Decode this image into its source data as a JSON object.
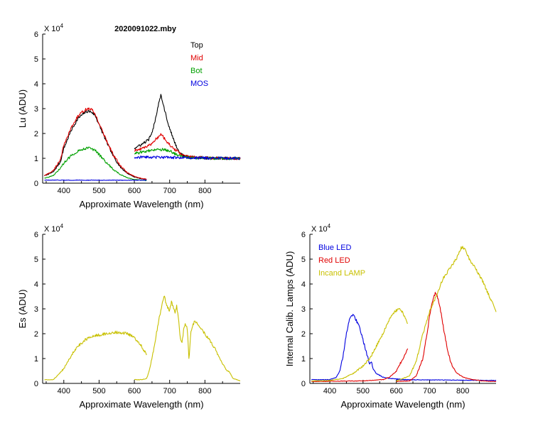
{
  "chart_data": [
    {
      "type": "line",
      "id": "lu",
      "title": "2020091022.mby",
      "xlabel": "Approximate Wavelength (nm)",
      "ylabel": "Lu (ADU)",
      "multiplier": "X 10",
      "exponent": "4",
      "xlim": [
        340,
        900
      ],
      "ylim": [
        0,
        6
      ],
      "xticks": [
        400,
        500,
        600,
        700,
        800
      ],
      "yticks": [
        0,
        1,
        2,
        3,
        4,
        5,
        6
      ],
      "legend_position": "top-right",
      "series": [
        {
          "name": "Top",
          "color": "#000000",
          "segments": [
            {
              "x": [
                345,
                370,
                390,
                400,
                420,
                440,
                460,
                470,
                480,
                490,
                500,
                520,
                540,
                560,
                580,
                600,
                620,
                635
              ],
              "y": [
                0.3,
                0.45,
                0.85,
                1.4,
                2.1,
                2.6,
                2.85,
                2.9,
                2.85,
                2.7,
                2.35,
                1.7,
                1.1,
                0.65,
                0.4,
                0.25,
                0.18,
                0.15
              ]
            },
            {
              "x": [
                600,
                620,
                640,
                650,
                660,
                670,
                675,
                680,
                690,
                700,
                710,
                720,
                730,
                740,
                760,
                800,
                850,
                900
              ],
              "y": [
                1.4,
                1.55,
                1.75,
                2.0,
                2.6,
                3.3,
                3.55,
                3.3,
                2.7,
                2.2,
                1.8,
                1.45,
                1.2,
                1.1,
                1.05,
                1.02,
                1.0,
                1.0
              ]
            }
          ]
        },
        {
          "name": "Mid",
          "color": "#e00000",
          "segments": [
            {
              "x": [
                345,
                370,
                390,
                400,
                420,
                440,
                460,
                470,
                480,
                490,
                500,
                520,
                540,
                560,
                580,
                600,
                620,
                635
              ],
              "y": [
                0.3,
                0.5,
                0.95,
                1.5,
                2.2,
                2.7,
                2.95,
                3.0,
                2.95,
                2.75,
                2.4,
                1.75,
                1.15,
                0.7,
                0.42,
                0.27,
                0.19,
                0.16
              ]
            },
            {
              "x": [
                600,
                620,
                640,
                650,
                660,
                670,
                675,
                680,
                690,
                700,
                710,
                720,
                730,
                740,
                760,
                800,
                850,
                900
              ],
              "y": [
                1.3,
                1.4,
                1.5,
                1.6,
                1.75,
                1.9,
                1.95,
                1.9,
                1.7,
                1.55,
                1.4,
                1.3,
                1.2,
                1.1,
                1.05,
                1.02,
                1.0,
                1.0
              ]
            }
          ]
        },
        {
          "name": "Bot",
          "color": "#00a000",
          "segments": [
            {
              "x": [
                345,
                370,
                390,
                400,
                420,
                440,
                460,
                470,
                480,
                490,
                500,
                520,
                540,
                560,
                580,
                600,
                620,
                635
              ],
              "y": [
                0.2,
                0.3,
                0.6,
                0.8,
                1.1,
                1.3,
                1.4,
                1.42,
                1.38,
                1.3,
                1.15,
                0.85,
                0.55,
                0.35,
                0.22,
                0.15,
                0.12,
                0.1
              ]
            },
            {
              "x": [
                600,
                620,
                640,
                660,
                680,
                700,
                720,
                740,
                760,
                800,
                850,
                900
              ],
              "y": [
                1.2,
                1.25,
                1.3,
                1.33,
                1.35,
                1.3,
                1.15,
                1.05,
                1.02,
                1.0,
                1.0,
                1.0
              ]
            }
          ]
        },
        {
          "name": "MOS",
          "color": "#0000e0",
          "segments": [
            {
              "x": [
                345,
                500,
                635
              ],
              "y": [
                0.12,
                0.12,
                0.12
              ]
            },
            {
              "x": [
                600,
                750,
                900
              ],
              "y": [
                1.05,
                1.02,
                1.0
              ]
            }
          ]
        }
      ]
    },
    {
      "type": "line",
      "id": "es",
      "title": "",
      "xlabel": "Approximate Wavelength (nm)",
      "ylabel": "Es  (ADU)",
      "multiplier": "X 10",
      "exponent": "4",
      "xlim": [
        340,
        900
      ],
      "ylim": [
        0,
        6
      ],
      "xticks": [
        400,
        500,
        600,
        700,
        800
      ],
      "yticks": [
        0,
        1,
        2,
        3,
        4,
        5,
        6
      ],
      "series": [
        {
          "name": "Es",
          "color": "#c8c000",
          "segments": [
            {
              "x": [
                345,
                370,
                385,
                400,
                420,
                440,
                460,
                480,
                500,
                520,
                540,
                560,
                580,
                600,
                620,
                635
              ],
              "y": [
                0.15,
                0.15,
                0.35,
                0.6,
                1.1,
                1.5,
                1.75,
                1.9,
                1.95,
                2.0,
                2.05,
                2.05,
                2.0,
                1.85,
                1.5,
                1.15
              ]
            },
            {
              "x": [
                600,
                620,
                635,
                640,
                650,
                660,
                670,
                680,
                685,
                690,
                700,
                705,
                710,
                715,
                720,
                725,
                730,
                735,
                740,
                745,
                750,
                755,
                760,
                770,
                780,
                790,
                800,
                810,
                820,
                830,
                840,
                850,
                860,
                870,
                880,
                900
              ],
              "y": [
                0.15,
                0.15,
                0.2,
                0.4,
                1.0,
                1.8,
                2.6,
                3.3,
                3.5,
                3.2,
                2.9,
                3.3,
                3.1,
                2.8,
                3.1,
                2.6,
                1.8,
                1.6,
                2.2,
                2.4,
                2.2,
                0.9,
                2.1,
                2.5,
                2.4,
                2.2,
                2.0,
                1.8,
                1.6,
                1.35,
                1.1,
                0.8,
                0.55,
                0.45,
                0.2,
                0.1
              ]
            }
          ]
        }
      ]
    },
    {
      "type": "line",
      "id": "lamps",
      "title": "",
      "xlabel": "Approximate Wavelength (nm)",
      "ylabel": "Internal Calib. Lamps  (ADU)",
      "multiplier": "X 10",
      "exponent": "4",
      "xlim": [
        340,
        900
      ],
      "ylim": [
        0,
        6
      ],
      "xticks": [
        400,
        500,
        600,
        700,
        800
      ],
      "yticks": [
        0,
        1,
        2,
        3,
        4,
        5,
        6
      ],
      "legend_position": "top-left",
      "series": [
        {
          "name": "Blue LED",
          "color": "#0000e0",
          "segments": [
            {
              "x": [
                345,
                400,
                420,
                430,
                440,
                450,
                460,
                468,
                475,
                485,
                495,
                505,
                515,
                520,
                525,
                530,
                540,
                560,
                580,
                600,
                620,
                635
              ],
              "y": [
                0.15,
                0.15,
                0.25,
                0.5,
                1.1,
                2.0,
                2.6,
                2.75,
                2.65,
                2.4,
                2.0,
                1.5,
                1.0,
                0.75,
                0.9,
                0.6,
                0.4,
                0.25,
                0.2,
                0.18,
                0.16,
                0.15
              ]
            },
            {
              "x": [
                600,
                700,
                800,
                900
              ],
              "y": [
                0.15,
                0.14,
                0.13,
                0.12
              ]
            }
          ]
        },
        {
          "name": "Red LED",
          "color": "#e00000",
          "segments": [
            {
              "x": [
                345,
                500,
                560,
                580,
                600,
                620,
                635
              ],
              "y": [
                0.08,
                0.1,
                0.15,
                0.25,
                0.5,
                1.0,
                1.45
              ]
            },
            {
              "x": [
                600,
                640,
                660,
                680,
                690,
                700,
                710,
                718,
                725,
                735,
                745,
                755,
                765,
                780,
                800,
                830,
                860,
                900
              ],
              "y": [
                0.08,
                0.1,
                0.3,
                1.0,
                1.8,
                2.7,
                3.4,
                3.65,
                3.45,
                2.8,
                2.0,
                1.3,
                0.8,
                0.45,
                0.25,
                0.15,
                0.1,
                0.08
              ]
            }
          ]
        },
        {
          "name": "Incand LAMP",
          "color": "#c8c000",
          "segments": [
            {
              "x": [
                345,
                400,
                440,
                470,
                500,
                520,
                540,
                560,
                580,
                600,
                610,
                620,
                630,
                635
              ],
              "y": [
                0.1,
                0.12,
                0.2,
                0.4,
                0.7,
                1.0,
                1.5,
                2.0,
                2.6,
                2.95,
                3.0,
                2.85,
                2.5,
                2.35
              ]
            },
            {
              "x": [
                600,
                640,
                660,
                680,
                700,
                720,
                740,
                760,
                780,
                795,
                800,
                810,
                820,
                840,
                860,
                880,
                900
              ],
              "y": [
                0.1,
                0.3,
                0.9,
                2.0,
                2.9,
                3.5,
                4.2,
                4.6,
                5.0,
                5.45,
                5.5,
                5.3,
                5.0,
                4.6,
                4.1,
                3.5,
                2.9
              ]
            }
          ]
        }
      ]
    }
  ]
}
